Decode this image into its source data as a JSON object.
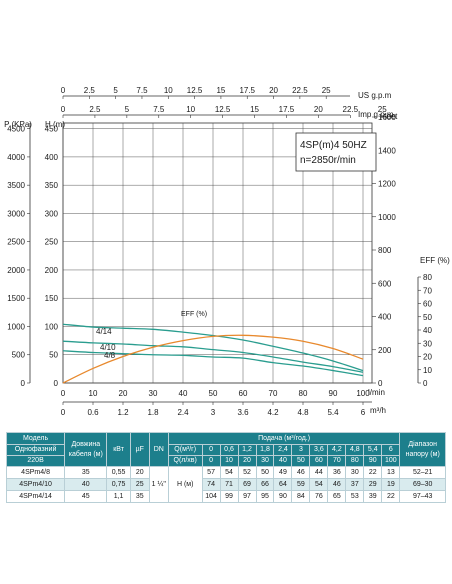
{
  "chart_data": {
    "type": "line",
    "model_label": "4SP(m)4  50HZ",
    "speed_label": "n=2850r/min",
    "top_axes": [
      {
        "label": "US g.p.m",
        "ticks": [
          "0",
          "2.5",
          "5",
          "7.5",
          "10",
          "12.5",
          "15",
          "17.5",
          "20",
          "22.5",
          "25"
        ],
        "tick_values": [
          0,
          2.5,
          5,
          7.5,
          10,
          12.5,
          15,
          17.5,
          20,
          22.5,
          25
        ],
        "range": [
          0,
          29.35
        ]
      },
      {
        "label": "Imp g.p.m",
        "ticks": [
          "0",
          "2.5",
          "5",
          "7.5",
          "10",
          "12.5",
          "15",
          "17.5",
          "20",
          "22.5",
          "25"
        ],
        "tick_values": [
          0,
          2.5,
          5,
          7.5,
          10,
          12.5,
          15,
          17.5,
          20,
          22.5,
          25
        ],
        "range": [
          0,
          24.2
        ]
      }
    ],
    "left_axes": {
      "pressure": {
        "label": "P (KPa)",
        "ticks": [
          "0",
          "500",
          "1000",
          "1500",
          "2000",
          "2500",
          "3000",
          "3500",
          "4000",
          "4500"
        ],
        "range": [
          0,
          4600
        ]
      },
      "head": {
        "label": "H (m)",
        "ticks": [
          "0",
          "50",
          "100",
          "150",
          "200",
          "250",
          "300",
          "350",
          "400",
          "450"
        ],
        "range": [
          0,
          460
        ]
      }
    },
    "right_axes": {
      "feet": {
        "label": "feet",
        "ticks": [
          "0",
          "200",
          "400",
          "600",
          "800",
          "1000",
          "1200",
          "1400",
          "1600"
        ],
        "range": [
          0,
          1600
        ]
      },
      "eff": {
        "label": "EFF (%)",
        "ticks": [
          "0",
          "10",
          "20",
          "30",
          "40",
          "50",
          "60",
          "70",
          "80"
        ],
        "range": [
          0,
          80
        ]
      }
    },
    "bottom_axes": [
      {
        "label": "l/min",
        "ticks": [
          "0",
          "10",
          "20",
          "30",
          "40",
          "50",
          "60",
          "70",
          "80",
          "90",
          "100"
        ],
        "range": [
          0,
          103
        ]
      },
      {
        "label": "m³/h",
        "ticks": [
          "0",
          "0.6",
          "1.2",
          "1.8",
          "2.4",
          "3",
          "3.6",
          "4.2",
          "4.8",
          "5.4",
          "6"
        ],
        "tick_values": [
          0,
          0.6,
          1.2,
          1.8,
          2.4,
          3,
          3.6,
          4.2,
          4.8,
          5.4,
          6
        ],
        "range": [
          0,
          6.18
        ]
      }
    ],
    "xlim": [
      0,
      103
    ],
    "ylim": [
      0,
      460
    ],
    "grid": true,
    "series": [
      {
        "name": "4/14",
        "color": "#2a9d8f",
        "x": [
          0,
          10,
          20,
          30,
          40,
          50,
          60,
          70,
          80,
          90,
          100
        ],
        "y": [
          104,
          99,
          97,
          95,
          90,
          84,
          76,
          65,
          53,
          39,
          22
        ]
      },
      {
        "name": "4/10",
        "color": "#2a9d8f",
        "x": [
          0,
          10,
          20,
          30,
          40,
          50,
          60,
          70,
          80,
          90,
          100
        ],
        "y": [
          74,
          71,
          69,
          66,
          64,
          59,
          54,
          46,
          37,
          29,
          19
        ]
      },
      {
        "name": "4/8",
        "color": "#2a9d8f",
        "x": [
          0,
          10,
          20,
          30,
          40,
          50,
          60,
          70,
          80,
          90,
          100
        ],
        "y": [
          57,
          54,
          52,
          50,
          49,
          46,
          44,
          36,
          30,
          22,
          13
        ]
      },
      {
        "name": "EFF (%)",
        "color": "#e8892d",
        "axis": "eff",
        "x": [
          0,
          10,
          20,
          30,
          40,
          50,
          60,
          70,
          80,
          90,
          100
        ],
        "y": [
          0,
          11,
          20,
          27,
          32,
          35.2,
          36,
          34.6,
          31.5,
          26,
          18
        ]
      }
    ]
  },
  "table": {
    "col_headers": {
      "model": "Модель",
      "model_sub1": "Однофазний",
      "model_sub2": "220В",
      "cable": "Довжина кабеля (м)",
      "kw": "кВт",
      "uf": "µF",
      "dn": "DN",
      "flow_title": "Подача (м³/год.)",
      "q1_label": "Q(м³/г)",
      "q2_label": "Q(л/хв)",
      "h_label": "H (м)",
      "range": "Діапазон напору (м)"
    },
    "q1_values": [
      "0",
      "0,6",
      "1,2",
      "1,8",
      "2,4",
      "3",
      "3,6",
      "4,2",
      "4,8",
      "5,4",
      "6"
    ],
    "q2_values": [
      "0",
      "10",
      "20",
      "30",
      "40",
      "50",
      "60",
      "70",
      "80",
      "90",
      "100"
    ],
    "dn_value": "1 ¼\"",
    "rows": [
      {
        "model": "4SPm4/8",
        "cable": "35",
        "kw": "0,55",
        "uf": "20",
        "h": [
          "57",
          "54",
          "52",
          "50",
          "49",
          "46",
          "44",
          "36",
          "30",
          "22",
          "13"
        ],
        "range": "52–21"
      },
      {
        "model": "4SPm4/10",
        "cable": "40",
        "kw": "0,75",
        "uf": "25",
        "h": [
          "74",
          "71",
          "69",
          "66",
          "64",
          "59",
          "54",
          "46",
          "37",
          "29",
          "19"
        ],
        "range": "69–30"
      },
      {
        "model": "4SPm4/14",
        "cable": "45",
        "kw": "1,1",
        "uf": "35",
        "h": [
          "104",
          "99",
          "97",
          "95",
          "90",
          "84",
          "76",
          "65",
          "53",
          "39",
          "22"
        ],
        "range": "97–43"
      }
    ]
  }
}
